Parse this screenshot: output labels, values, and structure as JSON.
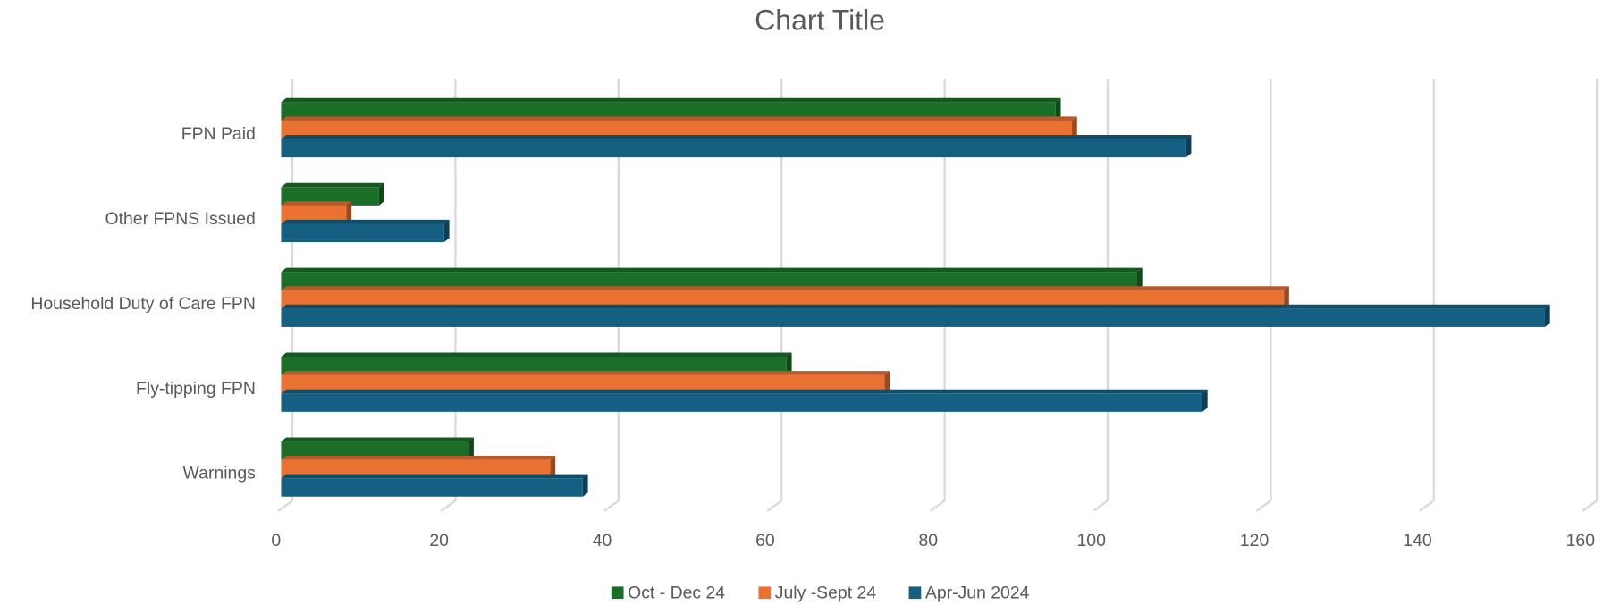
{
  "chart_data": {
    "type": "bar",
    "orientation": "horizontal",
    "title": "Chart Title",
    "categories": [
      "FPN Paid",
      "Other FPNS Issued",
      "Household Duty of Care FPN",
      "Fly-tipping FPN",
      "Warnings"
    ],
    "series": [
      {
        "name": "Oct - Dec 24",
        "color": "#1a6e28",
        "values": [
          95,
          12,
          105,
          62,
          23
        ]
      },
      {
        "name": "July -Sept 24",
        "color": "#e97132",
        "values": [
          97,
          8,
          123,
          74,
          33
        ]
      },
      {
        "name": "Apr-Jun 2024",
        "color": "#156082",
        "values": [
          111,
          20,
          155,
          113,
          37
        ]
      }
    ],
    "xlim": [
      0,
      160
    ],
    "xticks": [
      0,
      20,
      40,
      60,
      80,
      100,
      120,
      140,
      160
    ],
    "grid": true,
    "legend": "bottom"
  }
}
